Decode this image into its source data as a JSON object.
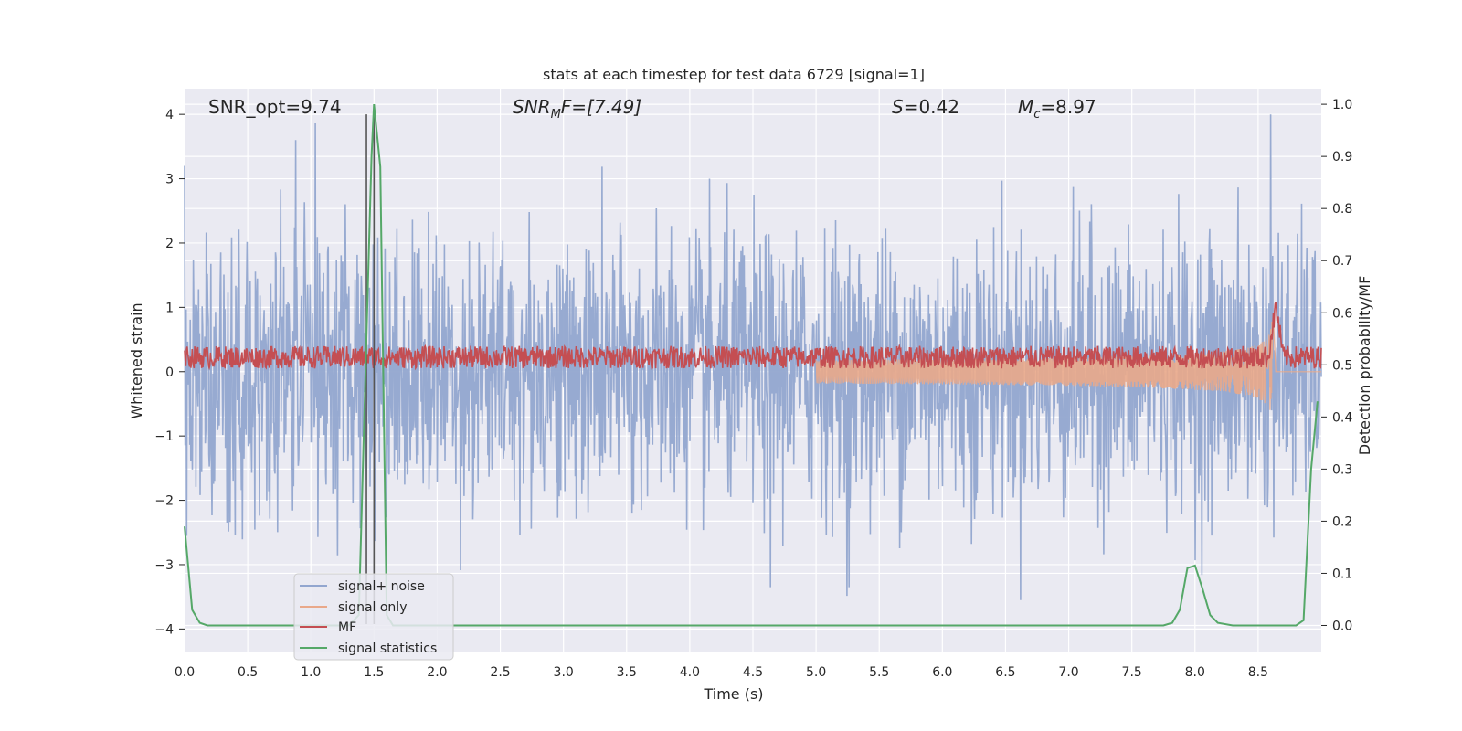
{
  "chart_data": {
    "type": "line",
    "title": "stats at each timestep for test data 6729 [signal=1]",
    "xlabel": "Time (s)",
    "ylabel_left": "Whitened strain",
    "ylabel_right": "Detection probability/MF",
    "xlim": [
      0.0,
      9.0
    ],
    "ylim_left": [
      -4.35,
      4.4
    ],
    "ylim_right": [
      -0.05,
      1.03
    ],
    "x_ticks": [
      "0.0",
      "0.5",
      "1.0",
      "1.5",
      "2.0",
      "2.5",
      "3.0",
      "3.5",
      "4.0",
      "4.5",
      "5.0",
      "5.5",
      "6.0",
      "6.5",
      "7.0",
      "7.5",
      "8.0",
      "8.5"
    ],
    "y_ticks_left": [
      "−4",
      "−3",
      "−2",
      "−1",
      "0",
      "1",
      "2",
      "3",
      "4"
    ],
    "y_ticks_right": [
      "0.0",
      "0.1",
      "0.2",
      "0.3",
      "0.4",
      "0.5",
      "0.6",
      "0.7",
      "0.8",
      "0.9",
      "1.0"
    ],
    "grid": true,
    "legend_position": "lower-left",
    "annotations": {
      "snr_opt": "SNR_opt=9.74",
      "snr_mf_main": "SNR",
      "snr_mf_sub": "M",
      "snr_mf_rest": "F=[7.49]",
      "s_main": "S",
      "s_rest": "=0.42",
      "mc_main": "M",
      "mc_sub": "c",
      "mc_rest": "=8.97"
    },
    "vlines_x": [
      1.44,
      1.5
    ],
    "series": [
      {
        "name": "signal+ noise",
        "color": "#92a6cf",
        "axis": "left",
        "description": "whitened strain noise, approx. gaussian std 1, envelope peaks near ±3.5",
        "x_range": [
          0.0,
          9.0
        ],
        "notable_peaks": [
          [
            0.0,
            3.2
          ],
          [
            0.88,
            3.6
          ],
          [
            4.64,
            -3.35
          ],
          [
            5.26,
            -3.35
          ],
          [
            8.6,
            4.0
          ]
        ]
      },
      {
        "name": "signal only",
        "color": "#e9a88a",
        "axis": "left",
        "description": "chirp starting near t=5.0, amplitude rising to about ±1.0 near t=8.62, then zero",
        "x_start": 5.0,
        "merger_time": 8.62,
        "peak_amplitude": 1.0
      },
      {
        "name": "MF",
        "color": "#c44e52",
        "axis": "left",
        "description": "matched filter output near 0.05–0.4, spike to ~1.0 at t=8.64",
        "baseline_range": [
          0.05,
          0.4
        ],
        "spike": [
          8.64,
          1.0
        ]
      },
      {
        "name": "signal statistics",
        "color": "#55a868",
        "axis": "right",
        "x": [
          0.0,
          0.06,
          0.12,
          0.18,
          0.5,
          1.0,
          1.3,
          1.38,
          1.44,
          1.48,
          1.5,
          1.55,
          1.6,
          1.65,
          1.72,
          2.0,
          7.6,
          7.75,
          7.82,
          7.88,
          7.94,
          8.0,
          8.06,
          8.12,
          8.18,
          8.3,
          8.8,
          8.86,
          8.92,
          8.97
        ],
        "values": [
          0.19,
          0.03,
          0.005,
          0.0,
          0.0,
          0.0,
          0.0,
          0.02,
          0.55,
          0.9,
          1.0,
          0.88,
          0.02,
          0.0,
          0.0,
          0.0,
          0.0,
          0.0,
          0.005,
          0.03,
          0.11,
          0.115,
          0.07,
          0.02,
          0.005,
          0.0,
          0.0,
          0.01,
          0.3,
          0.43
        ]
      }
    ]
  }
}
